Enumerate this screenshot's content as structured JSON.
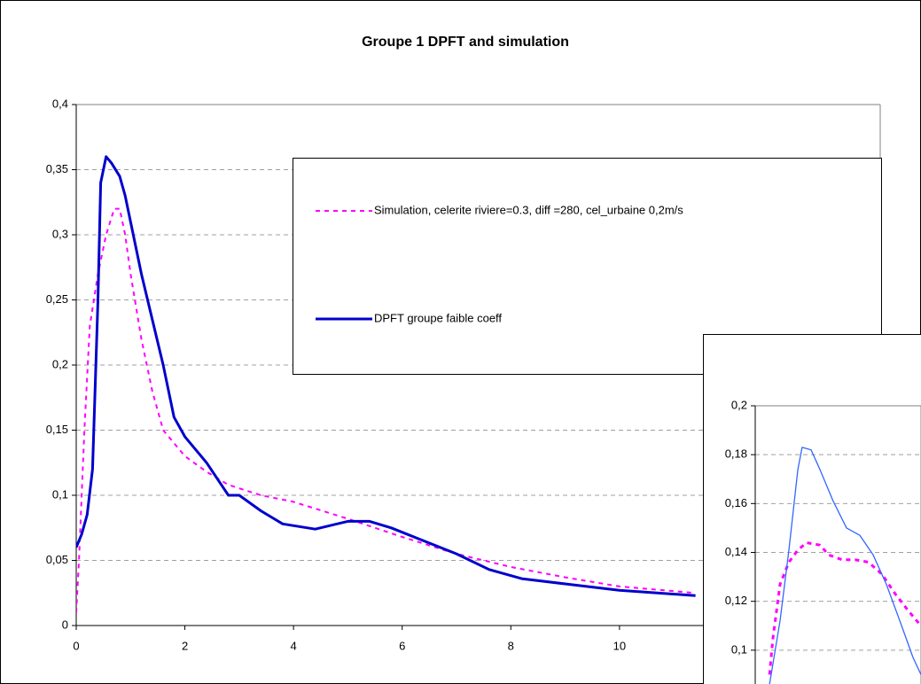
{
  "chart_data": [
    {
      "type": "line",
      "title": "Groupe 1 DPFT and simulation",
      "xlim": [
        0,
        14.8
      ],
      "xticks": [
        0,
        2,
        4,
        6,
        8,
        10
      ],
      "ylim": [
        0,
        0.4
      ],
      "yticks": [
        0,
        {
          "value": 0.05,
          "label": "0,05"
        },
        {
          "value": 0.1,
          "label": "0,1"
        },
        {
          "value": 0.15,
          "label": "0,15"
        },
        {
          "value": 0.2,
          "label": "0,2"
        },
        {
          "value": 0.25,
          "label": "0,25"
        },
        {
          "value": 0.3,
          "label": "0,3"
        },
        {
          "value": 0.35,
          "label": "0,35"
        },
        {
          "value": 0.4,
          "label": "0,4"
        }
      ],
      "grid": true,
      "legend": "upper right",
      "series": [
        {
          "name": "Simulation,  celerite riviere=0.3,  diff =280,  cel_urbaine 0,2m/s",
          "color": "#ff00ff",
          "style": "dashed",
          "linewidth": 2,
          "x": [
            0,
            0.05,
            0.15,
            0.25,
            0.4,
            0.55,
            0.7,
            0.8,
            0.9,
            1.0,
            1.2,
            1.4,
            1.6,
            2.0,
            2.4,
            2.8,
            3.4,
            4.0,
            5.0,
            6.0,
            7.0,
            8.0,
            9.0,
            10.0,
            11.4
          ],
          "values": [
            0.01,
            0.05,
            0.15,
            0.23,
            0.27,
            0.3,
            0.32,
            0.32,
            0.3,
            0.27,
            0.22,
            0.18,
            0.15,
            0.13,
            0.118,
            0.108,
            0.1,
            0.095,
            0.082,
            0.068,
            0.055,
            0.045,
            0.037,
            0.03,
            0.025
          ]
        },
        {
          "name": "DPFT groupe faible coeff",
          "color": "#0000cc",
          "style": "solid",
          "linewidth": 3,
          "x": [
            0,
            0.1,
            0.2,
            0.3,
            0.4,
            0.45,
            0.55,
            0.65,
            0.8,
            0.9,
            1.0,
            1.2,
            1.4,
            1.6,
            1.8,
            2.0,
            2.4,
            2.8,
            3.0,
            3.4,
            3.8,
            4.4,
            5.0,
            5.4,
            5.8,
            6.4,
            7.0,
            7.6,
            8.2,
            9.0,
            10.0,
            11.4
          ],
          "values": [
            0.06,
            0.07,
            0.085,
            0.12,
            0.25,
            0.34,
            0.36,
            0.355,
            0.345,
            0.33,
            0.31,
            0.27,
            0.235,
            0.2,
            0.16,
            0.145,
            0.125,
            0.1,
            0.1,
            0.088,
            0.078,
            0.074,
            0.08,
            0.08,
            0.075,
            0.065,
            0.055,
            0.043,
            0.036,
            0.032,
            0.027,
            0.023
          ]
        }
      ]
    },
    {
      "type": "line",
      "xlim": [
        0,
        1
      ],
      "ylim": [
        0.08,
        0.2
      ],
      "yticks": [
        {
          "value": 0.1,
          "label": "0,1"
        },
        {
          "value": 0.12,
          "label": "0,12"
        },
        {
          "value": 0.14,
          "label": "0,14"
        },
        {
          "value": 0.16,
          "label": "0,16"
        },
        {
          "value": 0.18,
          "label": "0,18"
        },
        {
          "value": 0.2,
          "label": "0,2"
        }
      ],
      "grid": true,
      "series": [
        {
          "color": "#ff00ff",
          "style": "dashed",
          "linewidth": 3,
          "x": [
            0.086,
            0.107,
            0.15,
            0.203,
            0.257,
            0.31,
            0.39,
            0.444,
            0.524,
            0.604,
            0.684,
            0.765,
            0.845,
            0.925,
            1.0
          ],
          "values": [
            0.09,
            0.105,
            0.127,
            0.136,
            0.141,
            0.144,
            0.143,
            0.139,
            0.137,
            0.137,
            0.136,
            0.131,
            0.123,
            0.116,
            0.11
          ]
        },
        {
          "color": "#3366ff",
          "style": "solid",
          "linewidth": 1.3,
          "x": [
            0.086,
            0.15,
            0.203,
            0.257,
            0.283,
            0.337,
            0.39,
            0.47,
            0.551,
            0.631,
            0.711,
            0.791,
            0.872,
            0.952,
            1.0
          ],
          "values": [
            0.086,
            0.112,
            0.141,
            0.174,
            0.183,
            0.182,
            0.174,
            0.161,
            0.15,
            0.147,
            0.139,
            0.127,
            0.112,
            0.097,
            0.09
          ]
        }
      ]
    }
  ]
}
